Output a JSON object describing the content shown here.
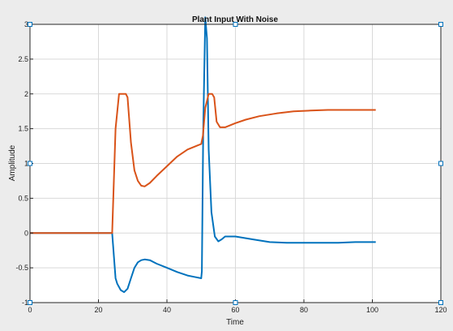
{
  "colors": {
    "background": "#ececec",
    "plot_area": "#ffffff",
    "axis": "#262626",
    "handle": "#0072bd"
  },
  "chart_data": {
    "type": "line",
    "title": "Plant Input With Noise",
    "xlabel": "Time",
    "ylabel": "Amplitude",
    "xlim": [
      0,
      120
    ],
    "ylim": [
      -1,
      3
    ],
    "grid": true,
    "xticks": [
      0,
      20,
      40,
      60,
      80,
      100,
      120
    ],
    "yticks": [
      -1,
      -0.5,
      0,
      0.5,
      1,
      1.5,
      2,
      2.5,
      3
    ],
    "series": [
      {
        "color": "#0072bd",
        "x": [
          0,
          24,
          25,
          25.5,
          26.5,
          27.5,
          28.5,
          29.5,
          30.5,
          31.5,
          32.5,
          33.5,
          35,
          37,
          40,
          43,
          46,
          48,
          50,
          50.2,
          50.6,
          51.2,
          51.7,
          52.2,
          53,
          54,
          55,
          56,
          57,
          60,
          65,
          70,
          75,
          80,
          85,
          90,
          95,
          101
        ],
        "y": [
          0,
          0,
          -0.65,
          -0.73,
          -0.82,
          -0.85,
          -0.8,
          -0.65,
          -0.5,
          -0.42,
          -0.39,
          -0.38,
          -0.39,
          -0.44,
          -0.5,
          -0.56,
          -0.61,
          -0.63,
          -0.65,
          -0.55,
          1.5,
          3.1,
          2.8,
          1.2,
          0.3,
          -0.05,
          -0.12,
          -0.09,
          -0.05,
          -0.05,
          -0.09,
          -0.13,
          -0.14,
          -0.14,
          -0.14,
          -0.14,
          -0.13,
          -0.13
        ]
      },
      {
        "color": "#d95319",
        "x": [
          0,
          24,
          25,
          26,
          27,
          28,
          28.5,
          29.5,
          30.5,
          31.5,
          32.5,
          33.5,
          35,
          37,
          40,
          43,
          46,
          49,
          50,
          50.5,
          51.2,
          52.2,
          53.2,
          53.8,
          54.5,
          55.5,
          57,
          60,
          63,
          67,
          72,
          77,
          82,
          87,
          92,
          97,
          101
        ],
        "y": [
          0,
          0,
          1.5,
          2.0,
          2.0,
          2.0,
          1.95,
          1.3,
          0.9,
          0.75,
          0.68,
          0.67,
          0.72,
          0.82,
          0.96,
          1.1,
          1.2,
          1.26,
          1.28,
          1.4,
          1.8,
          2.0,
          2.0,
          1.95,
          1.6,
          1.52,
          1.52,
          1.58,
          1.63,
          1.68,
          1.72,
          1.75,
          1.76,
          1.77,
          1.77,
          1.77,
          1.77
        ]
      }
    ]
  }
}
